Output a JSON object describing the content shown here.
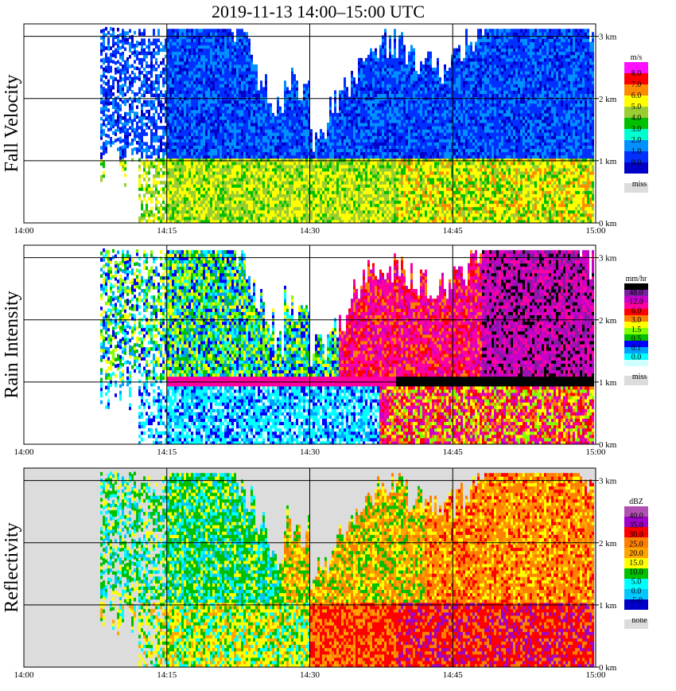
{
  "title": "2019-11-13   14:00–15:00 UTC",
  "time_ticks": [
    "14:00",
    "14:15",
    "14:30",
    "14:45",
    "15:00"
  ],
  "height_ticks": [
    "0 km",
    "1 km",
    "2 km",
    "3 km"
  ],
  "chart_data": [
    {
      "type": "heatmap",
      "title": "Fall Velocity",
      "x_range": [
        "14:00",
        "15:00"
      ],
      "y_range_km": [
        0,
        3.2
      ],
      "colorbar": {
        "unit": "m/s",
        "levels": [
          "8.0",
          "7.0",
          "6.0",
          "5.0",
          "4.0",
          "3.0",
          "2.0",
          "1.0",
          "0.0"
        ],
        "colors": [
          "#ff10ff",
          "#ff0000",
          "#ff8c00",
          "#ffff00",
          "#9acd32",
          "#00c000",
          "#00ffd0",
          "#0090ff",
          "#0030ff",
          "#0000c8"
        ],
        "missing_label": "miss",
        "missing_color": "#dcdcdc"
      }
    },
    {
      "type": "heatmap",
      "title": "Rain Intensity",
      "x_range": [
        "14:00",
        "15:00"
      ],
      "y_range_km": [
        0,
        3.2
      ],
      "colorbar": {
        "unit": "mm/hr",
        "levels": [
          "48.0",
          "12.0",
          "6.0",
          "3.0",
          "1.5",
          "0.5",
          "0.1",
          "0.0"
        ],
        "colors": [
          "#000000",
          "#7b1fa2",
          "#c800c8",
          "#ff00a0",
          "#ff0000",
          "#ff8000",
          "#ffff00",
          "#80ff00",
          "#00c000",
          "#0000ff",
          "#00a0ff",
          "#00ffff",
          "#d0ffff"
        ],
        "missing_label": "miss",
        "missing_color": "#dcdcdc"
      }
    },
    {
      "type": "heatmap",
      "title": "Reflectivity",
      "x_range": [
        "14:00",
        "15:00"
      ],
      "y_range_km": [
        0,
        3.2
      ],
      "colorbar": {
        "unit": "dBZ",
        "levels": [
          "40.0",
          "35.0",
          "30.0",
          "25.0",
          "20.0",
          "15.0",
          "10.0",
          "5.0",
          "0.0",
          "-5.0"
        ],
        "colors": [
          "#b050b0",
          "#a000c8",
          "#ff0000",
          "#ff8000",
          "#ffa500",
          "#ffff00",
          "#00c000",
          "#00ffff",
          "#00c8ff",
          "#0000c8"
        ],
        "missing_label": "none",
        "missing_color": "#dcdcdc"
      }
    }
  ]
}
